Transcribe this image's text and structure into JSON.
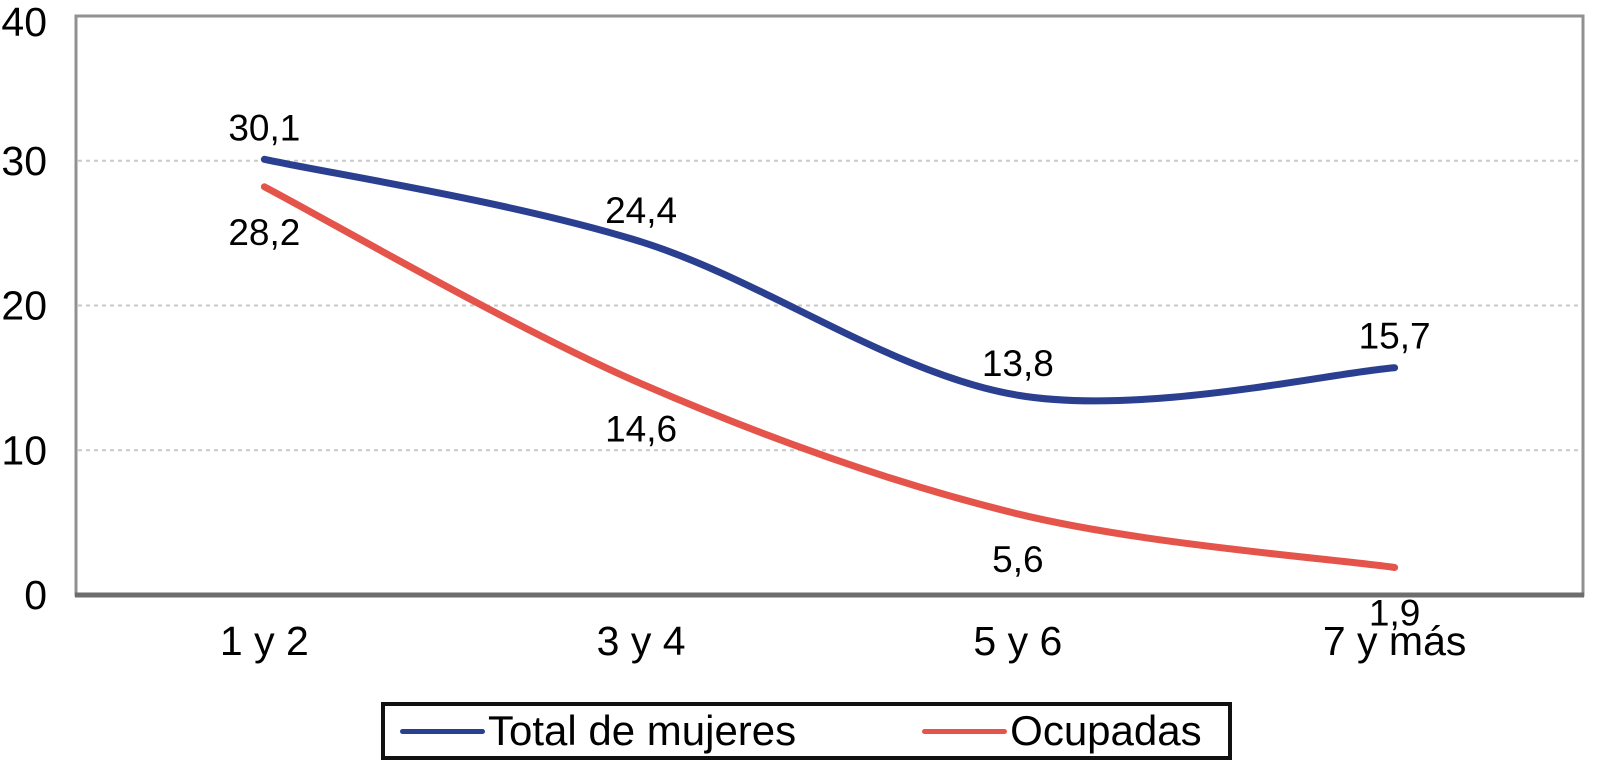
{
  "chart_data": {
    "type": "line",
    "categories": [
      "1 y 2",
      "3 y 4",
      "5 y 6",
      "7 y más"
    ],
    "series": [
      {
        "name": "Total de mujeres",
        "color": "#2A3F8F",
        "values": [
          30.1,
          24.4,
          13.8,
          15.7
        ],
        "label_position": "above"
      },
      {
        "name": "Ocupadas",
        "color": "#E5544A",
        "values": [
          28.2,
          14.6,
          5.6,
          1.9
        ],
        "label_position": "below"
      }
    ],
    "yticks": [
      0,
      10,
      20,
      30,
      40
    ],
    "ylim": [
      0,
      40
    ],
    "title": "",
    "xlabel": "",
    "ylabel": "",
    "grid": "horizontal-dashed",
    "line_style": "smooth",
    "legend_position": "bottom",
    "decimal_separator": ","
  },
  "colors": {
    "background": "#FFFFFF",
    "frame": "#919191",
    "axis": "#6D6D6D",
    "gridline": "#C9C9C9",
    "text": "#000000",
    "legend_border": "#111111"
  }
}
